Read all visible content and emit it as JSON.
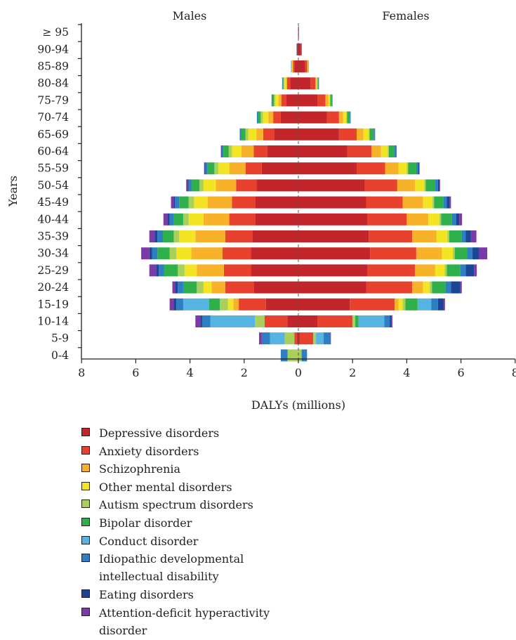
{
  "chart_data": {
    "type": "bar",
    "orientation": "horizontal",
    "stacked": true,
    "layout": "population-pyramid",
    "title": "",
    "xlabel": "DALYs (millions)",
    "ylabel": "Years",
    "left_group": "Males",
    "right_group": "Females",
    "xlim": [
      -8,
      8
    ],
    "xticks": [
      -8,
      -6,
      -4,
      -2,
      0,
      2,
      4,
      6,
      8
    ],
    "xtick_labels": [
      "8",
      "6",
      "4",
      "2",
      "0",
      "2",
      "4",
      "6",
      "8"
    ],
    "grid": false,
    "legend_position": "bottom",
    "categories": [
      "0-4",
      "5-9",
      "10-14",
      "15-19",
      "20-24",
      "25-29",
      "30-34",
      "35-39",
      "40-44",
      "45-49",
      "50-54",
      "55-59",
      "60-64",
      "65-69",
      "70-74",
      "75-79",
      "80-84",
      "85-89",
      "90-94",
      "≥ 95"
    ],
    "series": [
      {
        "name": "Depressive disorders",
        "color": "#c3262a",
        "males": [
          0,
          0.05,
          0.4,
          1.2,
          1.65,
          1.75,
          1.75,
          1.7,
          1.6,
          1.6,
          1.55,
          1.35,
          1.15,
          0.9,
          0.65,
          0.45,
          0.3,
          0.15,
          0.05,
          0.01
        ],
        "females": [
          0,
          0.05,
          0.7,
          1.9,
          2.5,
          2.55,
          2.65,
          2.6,
          2.55,
          2.5,
          2.45,
          2.15,
          1.8,
          1.5,
          1.05,
          0.7,
          0.45,
          0.25,
          0.1,
          0.02
        ]
      },
      {
        "name": "Anxiety disorders",
        "color": "#e8412e",
        "males": [
          0,
          0.1,
          0.85,
          1.0,
          1.05,
          1.0,
          1.05,
          1.0,
          0.95,
          0.85,
          0.75,
          0.6,
          0.5,
          0.4,
          0.28,
          0.18,
          0.12,
          0.05,
          0.01,
          0
        ],
        "females": [
          0,
          0.5,
          1.3,
          1.65,
          1.7,
          1.75,
          1.7,
          1.6,
          1.45,
          1.35,
          1.2,
          1.05,
          0.9,
          0.65,
          0.45,
          0.3,
          0.18,
          0.08,
          0.02,
          0
        ]
      },
      {
        "name": "Schizophrenia",
        "color": "#f8b22a",
        "males": [
          0,
          0,
          0,
          0.2,
          0.5,
          1.0,
          1.15,
          1.1,
          0.95,
          0.9,
          0.75,
          0.6,
          0.45,
          0.25,
          0.18,
          0.1,
          0.04,
          0.02,
          0,
          0
        ],
        "females": [
          0,
          0,
          0,
          0.15,
          0.4,
          0.75,
          0.95,
          0.9,
          0.8,
          0.75,
          0.65,
          0.5,
          0.35,
          0.25,
          0.15,
          0.1,
          0.04,
          0.02,
          0,
          0
        ]
      },
      {
        "name": "Other mental disorders",
        "color": "#f3e523",
        "males": [
          0,
          0,
          0,
          0.2,
          0.3,
          0.45,
          0.55,
          0.6,
          0.55,
          0.5,
          0.45,
          0.4,
          0.35,
          0.3,
          0.2,
          0.12,
          0.06,
          0.02,
          0,
          0
        ],
        "females": [
          0,
          0,
          0,
          0.15,
          0.25,
          0.35,
          0.4,
          0.4,
          0.4,
          0.35,
          0.35,
          0.3,
          0.25,
          0.2,
          0.12,
          0.06,
          0.03,
          0.01,
          0,
          0
        ]
      },
      {
        "name": "Autism spectrum disorders",
        "color": "#a8d05a",
        "males": [
          0.4,
          0.35,
          0.35,
          0.3,
          0.25,
          0.25,
          0.25,
          0.2,
          0.2,
          0.2,
          0.15,
          0.15,
          0.12,
          0.1,
          0.08,
          0.05,
          0.03,
          0.01,
          0,
          0
        ],
        "females": [
          0.12,
          0.1,
          0.1,
          0.1,
          0.08,
          0.08,
          0.07,
          0.07,
          0.07,
          0.06,
          0.05,
          0.05,
          0.04,
          0.03,
          0.03,
          0.02,
          0.01,
          0,
          0,
          0
        ]
      },
      {
        "name": "Bipolar disorder",
        "color": "#2fb04a",
        "males": [
          0,
          0,
          0,
          0.4,
          0.5,
          0.5,
          0.45,
          0.4,
          0.35,
          0.35,
          0.3,
          0.25,
          0.2,
          0.15,
          0.1,
          0.06,
          0.03,
          0.01,
          0,
          0
        ],
        "females": [
          0,
          0,
          0.12,
          0.45,
          0.5,
          0.5,
          0.45,
          0.45,
          0.4,
          0.35,
          0.35,
          0.3,
          0.2,
          0.15,
          0.1,
          0.06,
          0.03,
          0.01,
          0,
          0
        ]
      },
      {
        "name": "Conduct disorder",
        "color": "#56b4e3",
        "males": [
          0,
          0.55,
          1.65,
          0.95,
          0,
          0,
          0,
          0,
          0,
          0,
          0,
          0,
          0,
          0,
          0,
          0,
          0,
          0,
          0,
          0
        ],
        "females": [
          0,
          0.28,
          0.95,
          0.5,
          0,
          0,
          0,
          0,
          0,
          0,
          0,
          0,
          0,
          0,
          0,
          0,
          0,
          0,
          0,
          0
        ]
      },
      {
        "name": "Idiopathic developmental intellectual disability",
        "color": "#2d7fc1",
        "males": [
          0.25,
          0.3,
          0.3,
          0.25,
          0.2,
          0.2,
          0.2,
          0.2,
          0.15,
          0.15,
          0.1,
          0.08,
          0.06,
          0.05,
          0.04,
          0.03,
          0.02,
          0.01,
          0.01,
          0
        ],
        "females": [
          0.2,
          0.25,
          0.2,
          0.25,
          0.2,
          0.2,
          0.2,
          0.15,
          0.15,
          0.12,
          0.1,
          0.08,
          0.06,
          0.04,
          0.03,
          0.02,
          0.02,
          0.01,
          0.01,
          0
        ],
        "note_color_alt": "#1b4f9c"
      },
      {
        "name": "Eating disorders",
        "color": "#1d4595",
        "males": [
          0,
          0,
          0.05,
          0.1,
          0.1,
          0.1,
          0.1,
          0.1,
          0.08,
          0.05,
          0.04,
          0.03,
          0.02,
          0.01,
          0,
          0,
          0,
          0,
          0,
          0
        ],
        "females": [
          0,
          0,
          0.05,
          0.2,
          0.35,
          0.3,
          0.25,
          0.2,
          0.12,
          0.1,
          0.06,
          0.04,
          0.02,
          0.01,
          0,
          0,
          0,
          0,
          0,
          0
        ]
      },
      {
        "name": "Attention-deficit hyperactivity disorder",
        "color": "#7b3aa8",
        "males": [
          0,
          0.1,
          0.2,
          0.15,
          0.1,
          0.25,
          0.3,
          0.2,
          0.15,
          0.1,
          0.05,
          0.02,
          0.01,
          0,
          0,
          0,
          0,
          0,
          0,
          0
        ],
        "females": [
          0,
          0.02,
          0.05,
          0.06,
          0.05,
          0.1,
          0.3,
          0.2,
          0.1,
          0.05,
          0.02,
          0,
          0,
          0,
          0,
          0,
          0,
          0,
          0,
          0
        ]
      }
    ]
  },
  "legend": [
    {
      "label": "Depressive disorders",
      "color": "#c3262a"
    },
    {
      "label": "Anxiety disorders",
      "color": "#e8412e"
    },
    {
      "label": "Schizophrenia",
      "color": "#f8b22a"
    },
    {
      "label": "Other mental disorders",
      "color": "#f3e523"
    },
    {
      "label": "Autism spectrum disorders",
      "color": "#a8d05a"
    },
    {
      "label": "Bipolar disorder",
      "color": "#2fb04a"
    },
    {
      "label": "Conduct disorder",
      "color": "#56b4e3"
    },
    {
      "label": "Idiopathic developmental intellectual disability",
      "color": "#2d7fc1"
    },
    {
      "label": "Eating disorders",
      "color": "#1d4595"
    },
    {
      "label": "Attention-deficit hyperactivity disorder",
      "color": "#7b3aa8"
    }
  ]
}
